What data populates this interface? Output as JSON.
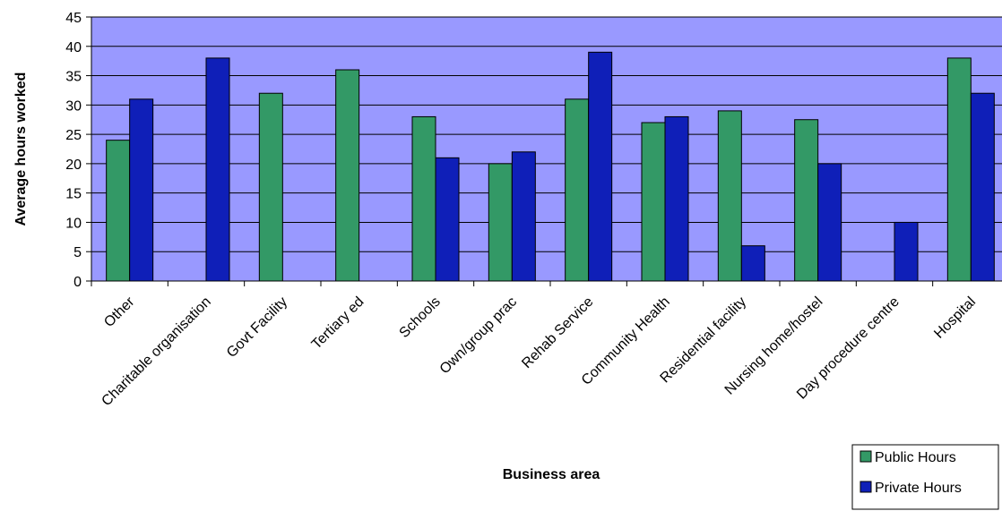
{
  "chart_data": {
    "type": "bar",
    "title": "",
    "xlabel": "Business area",
    "ylabel": "Average hours worked",
    "ylim": [
      0,
      45
    ],
    "yticks": [
      0,
      5,
      10,
      15,
      20,
      25,
      30,
      35,
      40,
      45
    ],
    "grid": true,
    "legend_position": "bottom-right",
    "colors": {
      "plot_background": "#9999ff",
      "public": "#339966",
      "private": "#0f1fb8"
    },
    "categories": [
      "Other",
      "Charitable organisation",
      "Govt Facility",
      "Tertiary ed",
      "Schools",
      "Own/group prac",
      "Rehab Service",
      "Community Health",
      "Residential facility",
      "Nursing home/hostel",
      "Day procedure centre",
      "Hospital"
    ],
    "series": [
      {
        "name": "Public Hours",
        "values": [
          24,
          null,
          32,
          36,
          28,
          20,
          31,
          27,
          29,
          27.5,
          null,
          38
        ]
      },
      {
        "name": "Private Hours",
        "values": [
          31,
          38,
          null,
          null,
          21,
          22,
          39,
          28,
          6,
          20,
          10,
          32
        ]
      }
    ]
  }
}
